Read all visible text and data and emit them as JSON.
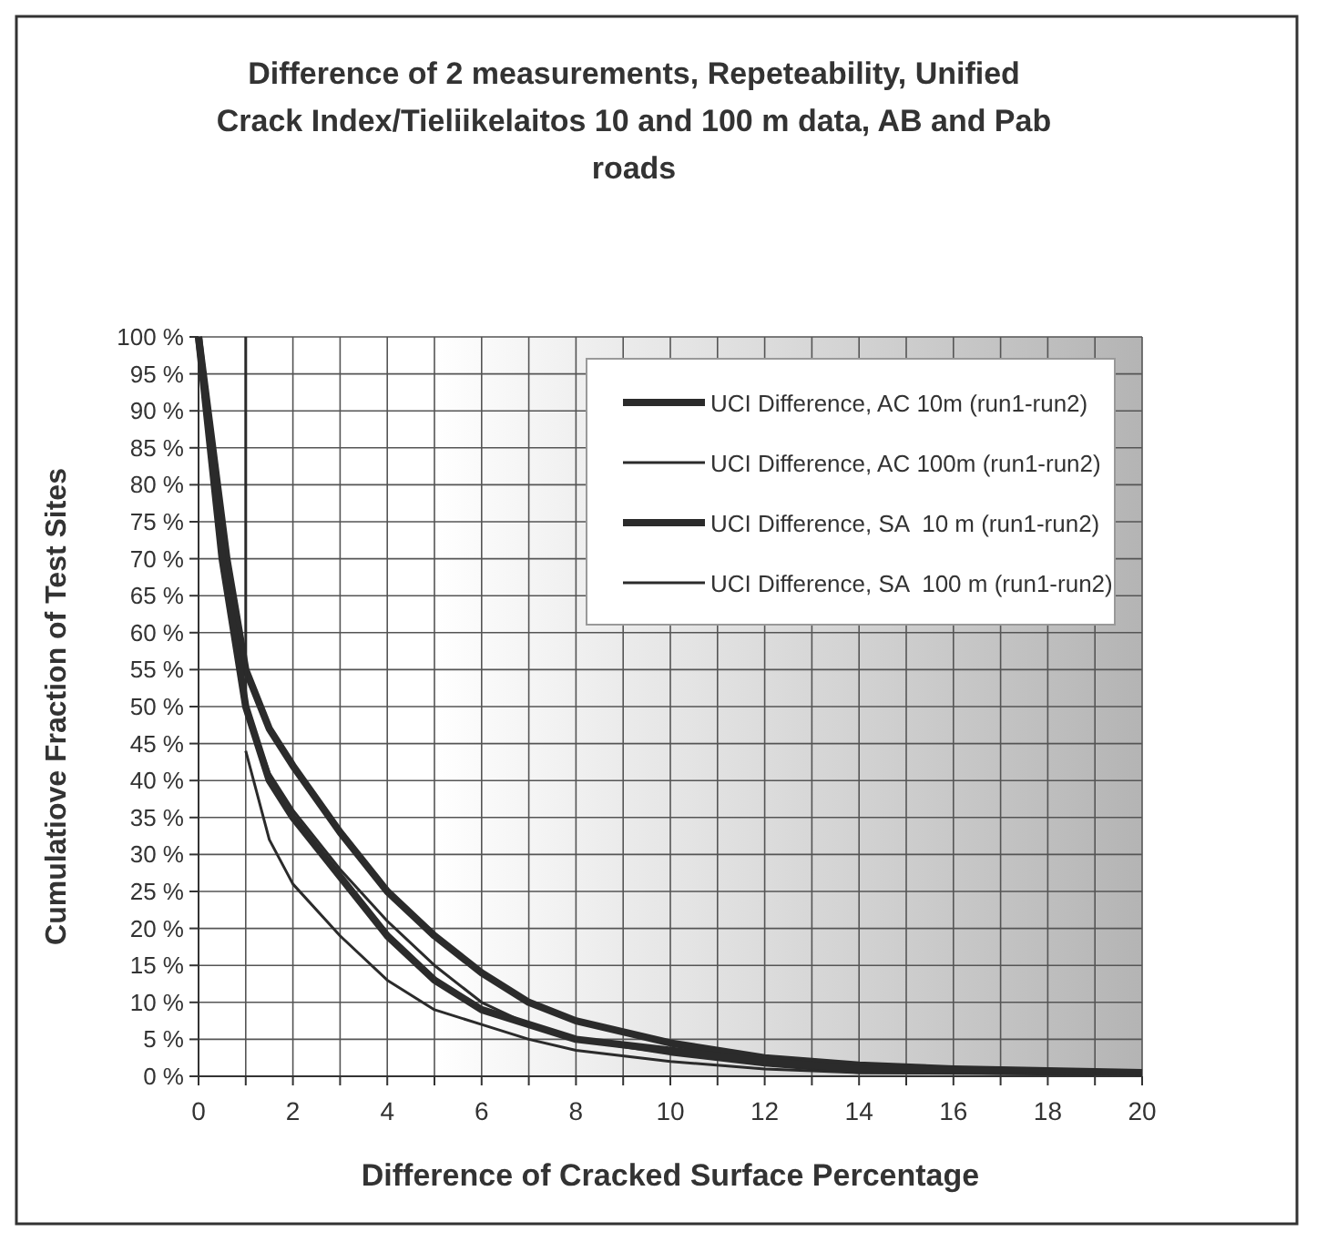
{
  "chart_data": {
    "type": "line",
    "title": "Difference of 2 measurements, Repeteability, Unified Crack Index/Tieliikelaitos 10 and 100 m data, AB and Pab roads",
    "xlabel": "Difference of Cracked Surface Percentage",
    "ylabel": "Cumulatiove Fraction of Test Sites",
    "xlim": [
      0,
      20
    ],
    "ylim": [
      0,
      100
    ],
    "xticks": [
      0,
      {
        "value": 1,
        "label": null
      },
      2,
      {
        "value": 3,
        "label": null
      },
      4,
      {
        "value": 5,
        "label": null
      },
      6,
      {
        "value": 7,
        "label": null
      },
      8,
      {
        "value": 9,
        "label": null
      },
      10,
      {
        "value": 11,
        "label": null
      },
      12,
      {
        "value": 13,
        "label": null
      },
      14,
      {
        "value": 15,
        "label": null
      },
      16,
      {
        "value": 17,
        "label": null
      },
      18,
      {
        "value": 19,
        "label": null
      },
      20
    ],
    "yticks": [
      {
        "value": 0,
        "label": "0 %"
      },
      {
        "value": 5,
        "label": "5 %"
      },
      {
        "value": 10,
        "label": "10 %"
      },
      {
        "value": 15,
        "label": "15 %"
      },
      {
        "value": 20,
        "label": "20 %"
      },
      {
        "value": 25,
        "label": "25 %"
      },
      {
        "value": 30,
        "label": "30 %"
      },
      {
        "value": 35,
        "label": "35 %"
      },
      {
        "value": 40,
        "label": "40 %"
      },
      {
        "value": 45,
        "label": "45 %"
      },
      {
        "value": 50,
        "label": "50 %"
      },
      {
        "value": 55,
        "label": "55 %"
      },
      {
        "value": 60,
        "label": "60 %"
      },
      {
        "value": 65,
        "label": "65 %"
      },
      {
        "value": 70,
        "label": "70 %"
      },
      {
        "value": 75,
        "label": "75 %"
      },
      {
        "value": 80,
        "label": "80 %"
      },
      {
        "value": 85,
        "label": "85 %"
      },
      {
        "value": 90,
        "label": "90 %"
      },
      {
        "value": 95,
        "label": "95 %"
      },
      {
        "value": 100,
        "label": "100 %"
      }
    ],
    "grid": true,
    "legend": "top right",
    "line_style": "solid",
    "series": [
      {
        "name": "UCI Difference, AC 10m (run1-run2)",
        "color": "#2b2b2b",
        "x": [
          0,
          0.3,
          0.6,
          1,
          1.5,
          2,
          3,
          4,
          5,
          6,
          7,
          8,
          10,
          12,
          14,
          16,
          20
        ],
        "values": [
          100,
          85,
          70,
          55,
          47,
          42,
          33,
          25,
          19,
          14,
          10,
          7.5,
          4.5,
          2.5,
          1.5,
          1,
          0.5
        ]
      },
      {
        "name": "UCI Difference, AC 100m (run1-run2)",
        "color": "#2b2b2b",
        "x": [
          1,
          1,
          1.5,
          2,
          3,
          4,
          5,
          6,
          7,
          8,
          10,
          12,
          14,
          20
        ],
        "values": [
          100,
          50,
          41,
          36,
          28,
          21,
          15,
          10,
          7,
          5,
          3,
          1.5,
          0.5,
          0.3
        ]
      },
      {
        "name": "UCI Difference, SA  10 m (run1-run2)",
        "color": "#2b2b2b",
        "x": [
          0,
          0.5,
          1,
          1.5,
          2,
          3,
          4,
          5,
          6,
          7,
          8,
          10,
          12,
          14,
          19
        ],
        "values": [
          100,
          70,
          50,
          40,
          35,
          27,
          19,
          13,
          9,
          7,
          5,
          3.5,
          2,
          1,
          0.5
        ]
      },
      {
        "name": "UCI Difference, SA  100 m (run1-run2)",
        "color": "#2b2b2b",
        "x": [
          1,
          1.5,
          2,
          3,
          4,
          5,
          6,
          7,
          8,
          10,
          12,
          14,
          19
        ],
        "values": [
          44,
          32,
          26,
          19,
          13,
          9,
          7,
          5,
          3.5,
          2,
          1,
          0.5,
          0.3
        ]
      }
    ]
  }
}
